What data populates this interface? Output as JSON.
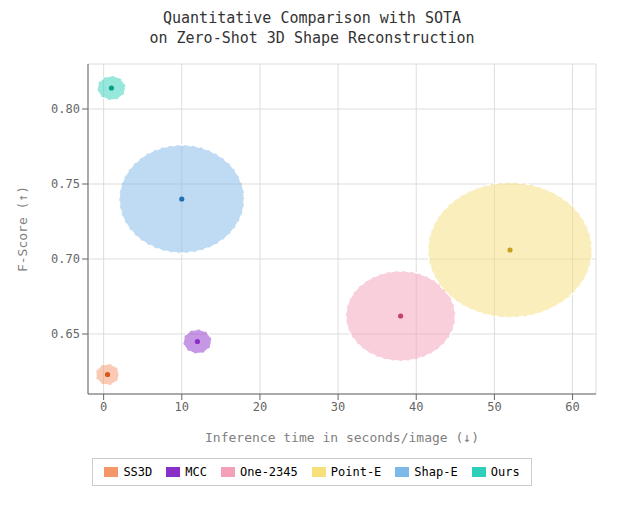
{
  "chart_data": {
    "type": "scatter",
    "title": "Quantitative Comparison with SOTA\non Zero-Shot 3D Shape Reconstruction",
    "x_label": "Inference time in seconds/image (↓)",
    "y_label": "F-Score (↑)",
    "xlim": [
      -2,
      63
    ],
    "ylim": [
      0.61,
      0.83
    ],
    "xticks": [
      0,
      10,
      20,
      30,
      40,
      50,
      60
    ],
    "yticks": [
      {
        "value": 0.65,
        "label": "0.65"
      },
      {
        "value": 0.7,
        "label": "0.70"
      },
      {
        "value": 0.75,
        "label": "0.75"
      },
      {
        "value": 0.8,
        "label": "0.80"
      }
    ],
    "grid": true,
    "legend": "bottom",
    "series": [
      {
        "name": "SS3D",
        "color": "#F5956A",
        "dot_color": "#D9581A",
        "x": [
          0.5
        ],
        "y": [
          0.623
        ],
        "rx": [
          1.5
        ],
        "ry": [
          0.007
        ]
      },
      {
        "name": "MCC",
        "color": "#8B2FC9",
        "dot_color": "#8B2FC9",
        "x": [
          12
        ],
        "y": [
          0.645
        ],
        "rx": [
          1.8
        ],
        "ry": [
          0.008
        ]
      },
      {
        "name": "One-2345",
        "color": "#F4A0B8",
        "dot_color": "#C94070",
        "x": [
          38
        ],
        "y": [
          0.662
        ],
        "rx": [
          7.0
        ],
        "ry": [
          0.03
        ]
      },
      {
        "name": "Point-E",
        "color": "#F5E07A",
        "dot_color": "#C8A020",
        "x": [
          52
        ],
        "y": [
          0.706
        ],
        "rx": [
          10.5
        ],
        "ry": [
          0.045
        ]
      },
      {
        "name": "Shap-E",
        "color": "#7EB8E8",
        "dot_color": "#2070B0",
        "x": [
          10
        ],
        "y": [
          0.74
        ],
        "rx": [
          8.0
        ],
        "ry": [
          0.036
        ]
      },
      {
        "name": "Ours",
        "color": "#2ECFBA",
        "dot_color": "#0A9E8A",
        "x": [
          1
        ],
        "y": [
          0.814
        ],
        "rx": [
          1.8
        ],
        "ry": [
          0.008
        ]
      }
    ]
  }
}
